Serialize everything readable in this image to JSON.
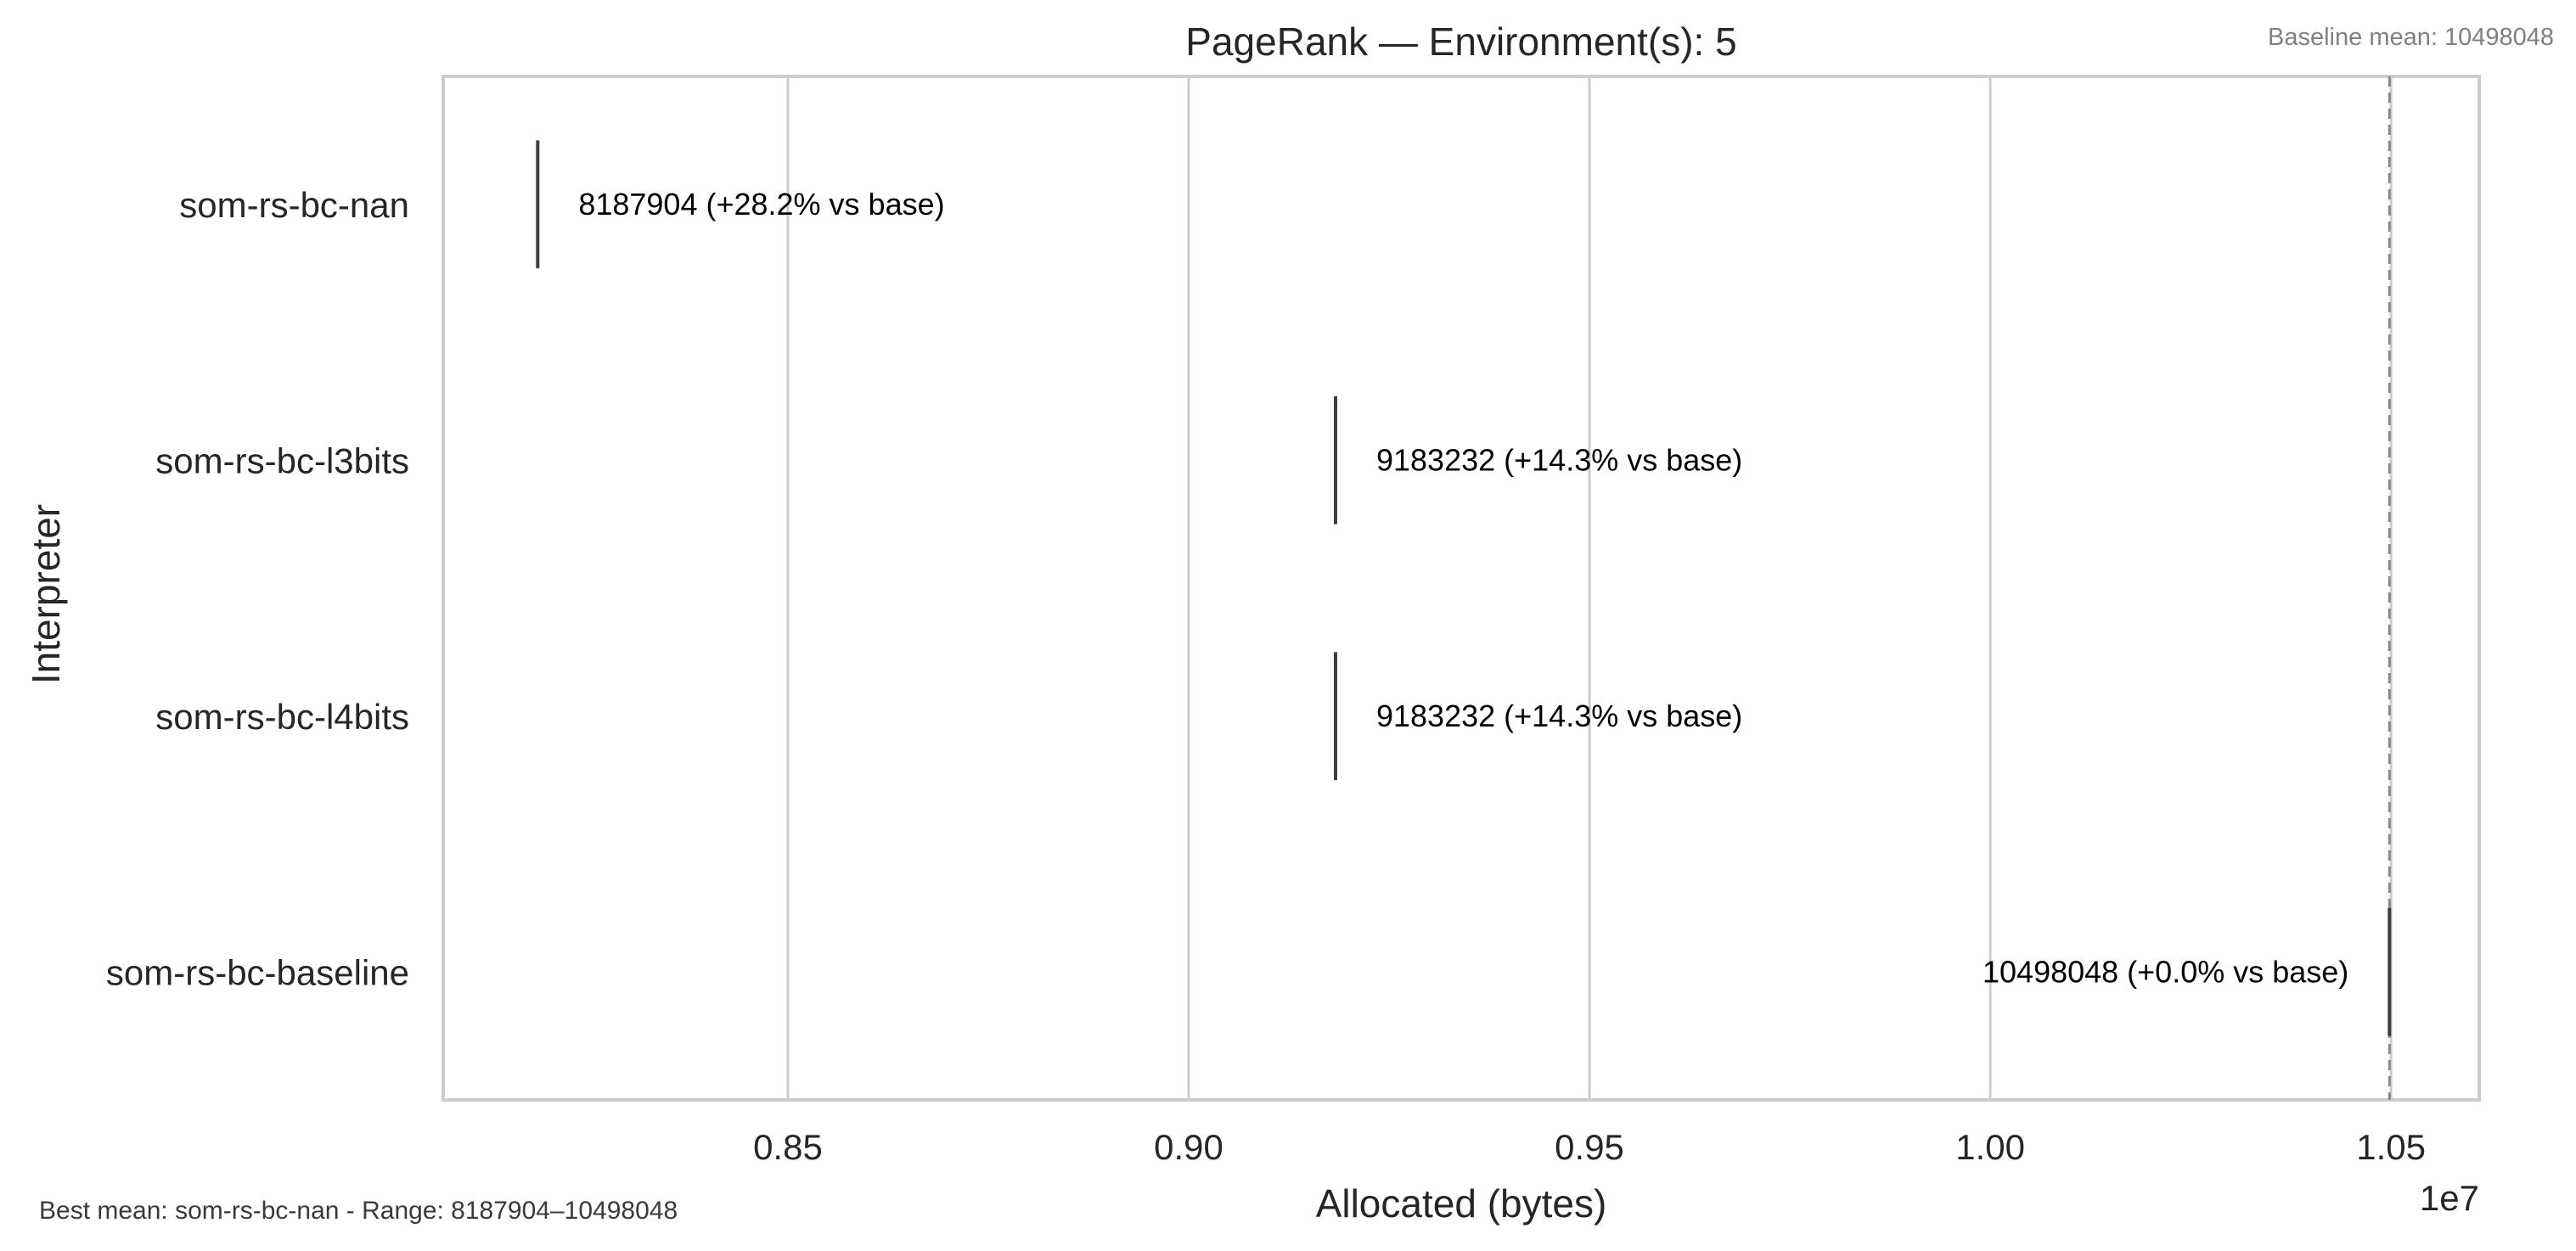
{
  "chart_data": {
    "type": "bar",
    "orientation": "horizontal",
    "title": "PageRank — Environment(s): 5",
    "xlabel": "Allocated (bytes)",
    "ylabel": "Interpreter",
    "x_offset_label": "1e7",
    "xlim": [
      8070000,
      10610000
    ],
    "xticks": [
      8500000,
      9000000,
      9500000,
      10000000,
      10500000
    ],
    "xtick_labels": [
      "0.85",
      "0.90",
      "0.95",
      "1.00",
      "1.05"
    ],
    "grid": "vertical",
    "categories": [
      "som-rs-bc-nan",
      "som-rs-bc-l3bits",
      "som-rs-bc-l4bits",
      "som-rs-bc-baseline"
    ],
    "values": [
      8187904,
      9183232,
      9183232,
      10498048
    ],
    "labels": [
      "8187904  (+28.2% vs base)",
      "9183232  (+14.3% vs base)",
      "9183232  (+14.3% vs base)",
      "10498048  (+0.0% vs base)"
    ],
    "baseline": {
      "value": 10498048,
      "note": "Baseline mean: 10498048"
    },
    "footer_note": "Best mean: som-rs-bc-nan - Range: 8187904–10498048",
    "colors": {
      "frame": "#cccccc",
      "grid": "#cccccc",
      "marker": "#3d3d3d",
      "baseline_line": "#888888",
      "text": "#262626"
    }
  }
}
